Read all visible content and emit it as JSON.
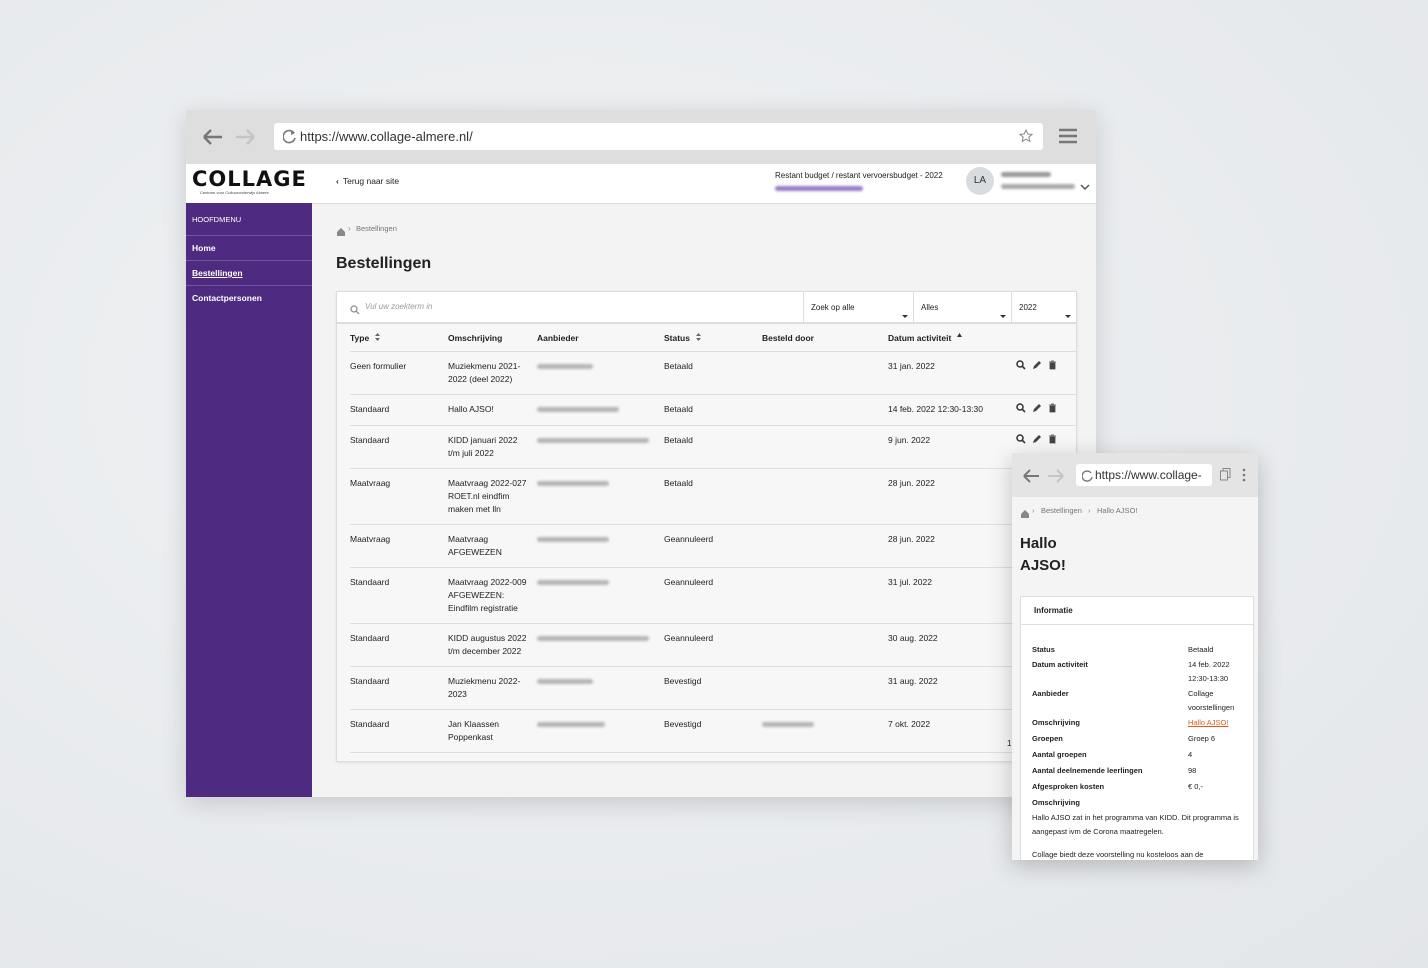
{
  "browser": {
    "url": "https://www.collage-almere.nl/"
  },
  "header": {
    "logo": "COLLAGE",
    "logo_sub": "Centrum voor Cultuuronderwijs Almere",
    "back": "Terug naar site",
    "budget_label": "Restant budget / restant vervoersbudget - 2022",
    "avatar": "LA"
  },
  "sidebar": {
    "heading": "HOOFDMENU",
    "items": [
      "Home",
      "Bestellingen",
      "Contactpersonen"
    ]
  },
  "breadcrumb": [
    "Bestellingen"
  ],
  "page_title": "Bestellingen",
  "filters": {
    "search_placeholder": "Vul uw zoekterm in",
    "selects": [
      "Zoek op alle",
      "Alles",
      "2022"
    ]
  },
  "table": {
    "columns": [
      "Type",
      "Omschrijving",
      "Aanbieder",
      "Status",
      "Besteld door",
      "Datum activiteit"
    ],
    "rows": [
      {
        "type": "Geen formulier",
        "omschrijving": "Muziekmenu 2021-2022 (deel 2022)",
        "status": "Betaald",
        "datum": "31 jan. 2022"
      },
      {
        "type": "Standaard",
        "omschrijving": "Hallo AJSO!",
        "status": "Betaald",
        "datum": "14 feb. 2022 12:30-13:30"
      },
      {
        "type": "Standaard",
        "omschrijving": "KIDD januari 2022 t/m juli 2022",
        "status": "Betaald",
        "datum": "9 jun. 2022"
      },
      {
        "type": "Maatvraag",
        "omschrijving": "Maatvraag 2022-027 ROET.nl eindfim maken met lln",
        "status": "Betaald",
        "datum": "28 jun. 2022"
      },
      {
        "type": "Maatvraag",
        "omschrijving": "Maatvraag AFGEWEZEN",
        "status": "Geannuleerd",
        "datum": "28 jun. 2022"
      },
      {
        "type": "Standaard",
        "omschrijving": "Maatvraag 2022-009 AFGEWEZEN: Eindfilm registratie",
        "status": "Geannuleerd",
        "datum": "31 jul. 2022"
      },
      {
        "type": "Standaard",
        "omschrijving": "KIDD augustus 2022 t/m december 2022",
        "status": "Geannuleerd",
        "datum": "30 aug. 2022"
      },
      {
        "type": "Standaard",
        "omschrijving": "Muziekmenu 2022-2023",
        "status": "Bevestigd",
        "datum": "31 aug. 2022"
      },
      {
        "type": "Standaard",
        "omschrijving": "Jan Klaassen Poppenkast",
        "status": "Bevestigd",
        "datum": "7 okt. 2022"
      }
    ],
    "pagination": "1"
  },
  "mobile": {
    "url": "https://www.collage-",
    "breadcrumb": [
      "Bestellingen",
      "Hallo AJSO!"
    ],
    "title": "Hallo AJSO!",
    "section": "Informatie",
    "fields": [
      {
        "label": "Status",
        "value": "Betaald"
      },
      {
        "label": "Datum activiteit",
        "value": "14 feb. 2022 12:30-13:30"
      },
      {
        "label": "Aanbieder",
        "value": "Collage voorstellingen"
      },
      {
        "label": "Omschrijving",
        "value": "Hallo AJSO!"
      },
      {
        "label": "Groepen",
        "value": "Groep 6"
      },
      {
        "label": "Aantal groepen",
        "value": "4"
      },
      {
        "label": "Aantal deelnemende leerlingen",
        "value": "98"
      },
      {
        "label": "Afgesproken kosten",
        "value": "€ 0,-"
      }
    ],
    "description_label": "Omschrijving",
    "paragraphs": [
      "Hallo AJSO zat in het programma van KIDD. Dit programma is aangepast ivm de Corona maatregelen.",
      "Collage biedt deze voorstelling nu kosteloos aan de"
    ]
  }
}
